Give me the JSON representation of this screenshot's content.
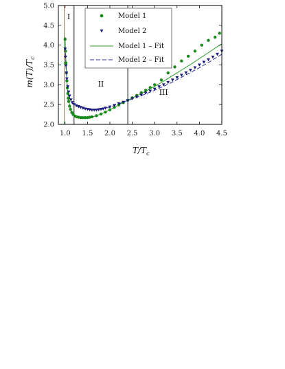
{
  "chart_data": {
    "type": "scatter",
    "xlabel": "T/T_c",
    "ylabel": "m(T)/T_c",
    "xlim": [
      0.85,
      4.5
    ],
    "ylim": [
      2.0,
      5.0
    ],
    "xticks": [
      1.0,
      1.5,
      2.0,
      2.5,
      3.0,
      3.5,
      4.0,
      4.5
    ],
    "yticks": [
      2.0,
      2.5,
      3.0,
      3.5,
      4.0,
      4.5,
      5.0
    ],
    "xtick_labels": [
      "1.0",
      "1.5",
      "2.0",
      "2.5",
      "3.0",
      "3.5",
      "4.0",
      "4.5"
    ],
    "ytick_labels": [
      "2.0",
      "2.5",
      "3.0",
      "3.5",
      "4.0",
      "4.5",
      "5.0"
    ],
    "grid": false,
    "legend_position": "top-center",
    "region_boundaries": [
      1.2,
      2.4
    ],
    "regions": [
      {
        "label": "I",
        "x": 1.08,
        "y": 4.65
      },
      {
        "label": "II",
        "x": 1.8,
        "y": 2.95
      },
      {
        "label": "III",
        "x": 3.2,
        "y": 2.75
      }
    ],
    "series": [
      {
        "name": "Model 1",
        "kind": "points",
        "marker": "circle",
        "color": "#1a8a1a",
        "x": [
          1.0,
          1.01,
          1.02,
          1.03,
          1.04,
          1.05,
          1.06,
          1.07,
          1.08,
          1.1,
          1.12,
          1.15,
          1.18,
          1.22,
          1.26,
          1.3,
          1.35,
          1.4,
          1.45,
          1.5,
          1.55,
          1.6,
          1.7,
          1.8,
          1.9,
          2.0,
          2.1,
          2.2,
          2.3,
          2.4,
          2.5,
          2.6,
          2.7,
          2.8,
          2.9,
          3.0,
          3.15,
          3.3,
          3.45,
          3.6,
          3.75,
          3.9,
          4.05,
          4.2,
          4.35,
          4.45
        ],
        "y": [
          4.15,
          3.85,
          3.55,
          3.3,
          3.1,
          2.92,
          2.78,
          2.66,
          2.58,
          2.46,
          2.38,
          2.3,
          2.25,
          2.21,
          2.19,
          2.18,
          2.17,
          2.17,
          2.17,
          2.17,
          2.18,
          2.19,
          2.22,
          2.26,
          2.31,
          2.37,
          2.43,
          2.49,
          2.55,
          2.61,
          2.67,
          2.73,
          2.8,
          2.86,
          2.93,
          3.0,
          3.12,
          3.3,
          3.45,
          3.6,
          3.72,
          3.85,
          4.0,
          4.12,
          4.2,
          4.3
        ]
      },
      {
        "name": "Model 2",
        "kind": "points",
        "marker": "triangle-down",
        "color": "#1a1a7a",
        "x": [
          1.0,
          1.01,
          1.02,
          1.03,
          1.04,
          1.06,
          1.08,
          1.1,
          1.13,
          1.16,
          1.2,
          1.25,
          1.3,
          1.35,
          1.4,
          1.45,
          1.5,
          1.55,
          1.6,
          1.65,
          1.7,
          1.75,
          1.8,
          1.85,
          1.9,
          2.0,
          2.1,
          2.2,
          2.3,
          2.4,
          2.5,
          2.6,
          2.7,
          2.8,
          2.9,
          3.0,
          3.1,
          3.2,
          3.3,
          3.4,
          3.5,
          3.6,
          3.7,
          3.8,
          3.9,
          4.0,
          4.1,
          4.2,
          4.3,
          4.4,
          4.5
        ],
        "y": [
          3.9,
          3.7,
          3.48,
          3.3,
          3.15,
          2.95,
          2.82,
          2.72,
          2.62,
          2.55,
          2.5,
          2.47,
          2.45,
          2.43,
          2.41,
          2.39,
          2.38,
          2.37,
          2.36,
          2.36,
          2.36,
          2.37,
          2.38,
          2.39,
          2.41,
          2.44,
          2.48,
          2.52,
          2.56,
          2.6,
          2.65,
          2.69,
          2.74,
          2.79,
          2.84,
          2.89,
          2.95,
          3.0,
          3.06,
          3.12,
          3.18,
          3.24,
          3.3,
          3.37,
          3.43,
          3.5,
          3.57,
          3.63,
          3.7,
          3.77,
          3.85
        ]
      },
      {
        "name": "Model 1 – Fit",
        "kind": "line",
        "dash": "solid",
        "color": "#2a9a2a",
        "x": [
          1.0,
          1.02,
          1.05,
          1.08,
          1.12,
          1.17,
          1.22,
          1.3,
          1.4,
          1.5,
          1.6,
          1.8,
          2.0,
          2.2,
          2.4,
          2.6,
          2.8,
          3.0,
          3.2,
          3.4,
          3.6,
          3.8,
          4.0,
          4.2,
          4.4,
          4.5
        ],
        "y": [
          4.2,
          3.55,
          2.9,
          2.6,
          2.4,
          2.28,
          2.22,
          2.18,
          2.16,
          2.16,
          2.18,
          2.26,
          2.37,
          2.49,
          2.61,
          2.72,
          2.84,
          2.96,
          3.09,
          3.23,
          3.37,
          3.51,
          3.66,
          3.81,
          3.96,
          4.03
        ]
      },
      {
        "name": "Model 2 – Fit",
        "kind": "line",
        "dash": "dashed",
        "color": "#2a2a9a",
        "x": [
          1.0,
          1.02,
          1.05,
          1.08,
          1.12,
          1.17,
          1.22,
          1.3,
          1.4,
          1.5,
          1.6,
          1.8,
          2.0,
          2.2,
          2.4,
          2.6,
          2.8,
          3.0,
          3.2,
          3.4,
          3.6,
          3.8,
          4.0,
          4.2,
          4.4,
          4.5
        ],
        "y": [
          3.95,
          3.45,
          2.95,
          2.75,
          2.6,
          2.52,
          2.48,
          2.44,
          2.41,
          2.38,
          2.37,
          2.38,
          2.44,
          2.52,
          2.6,
          2.68,
          2.77,
          2.86,
          2.96,
          3.07,
          3.19,
          3.31,
          3.43,
          3.56,
          3.7,
          3.77
        ]
      }
    ]
  },
  "legend": {
    "items": [
      {
        "label": "Model 1"
      },
      {
        "label": "Model 2"
      },
      {
        "label": "Model 1 – Fit"
      },
      {
        "label": "Model 2 – Fit"
      }
    ]
  },
  "axes": {
    "xlabel_main": "T/T",
    "xlabel_sub": "c",
    "ylabel_main": "m(T)/T",
    "ylabel_sub": "c"
  }
}
